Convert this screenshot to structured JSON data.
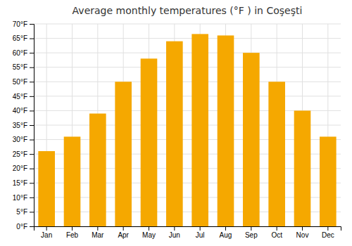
{
  "chart_data": {
    "type": "bar",
    "title": "Average monthly temperatures (°F ) in Coşeşti",
    "categories": [
      "Jan",
      "Feb",
      "Mar",
      "Apr",
      "May",
      "Jun",
      "Jul",
      "Aug",
      "Sep",
      "Oct",
      "Nov",
      "Dec"
    ],
    "values": [
      26,
      31,
      39,
      50,
      58,
      64,
      66.5,
      66,
      60,
      50,
      40,
      31
    ],
    "color": "#F5A800",
    "ylim": [
      0,
      70
    ],
    "yticks": [
      {
        "value": 0,
        "label": "0°F"
      },
      {
        "value": 5,
        "label": "5°F"
      },
      {
        "value": 10,
        "label": "10°F"
      },
      {
        "value": 15,
        "label": "15°F"
      },
      {
        "value": 20,
        "label": "20°F"
      },
      {
        "value": 25,
        "label": "25°F"
      },
      {
        "value": 30,
        "label": "30°F"
      },
      {
        "value": 35,
        "label": "35°F"
      },
      {
        "value": 40,
        "label": "40°F"
      },
      {
        "value": 45,
        "label": "45°F"
      },
      {
        "value": 50,
        "label": "50°F"
      },
      {
        "value": 55,
        "label": "55°F"
      },
      {
        "value": 60,
        "label": "60°F"
      },
      {
        "value": 65,
        "label": "65°F"
      },
      {
        "value": 70,
        "label": "70°F"
      }
    ],
    "grid": true
  }
}
